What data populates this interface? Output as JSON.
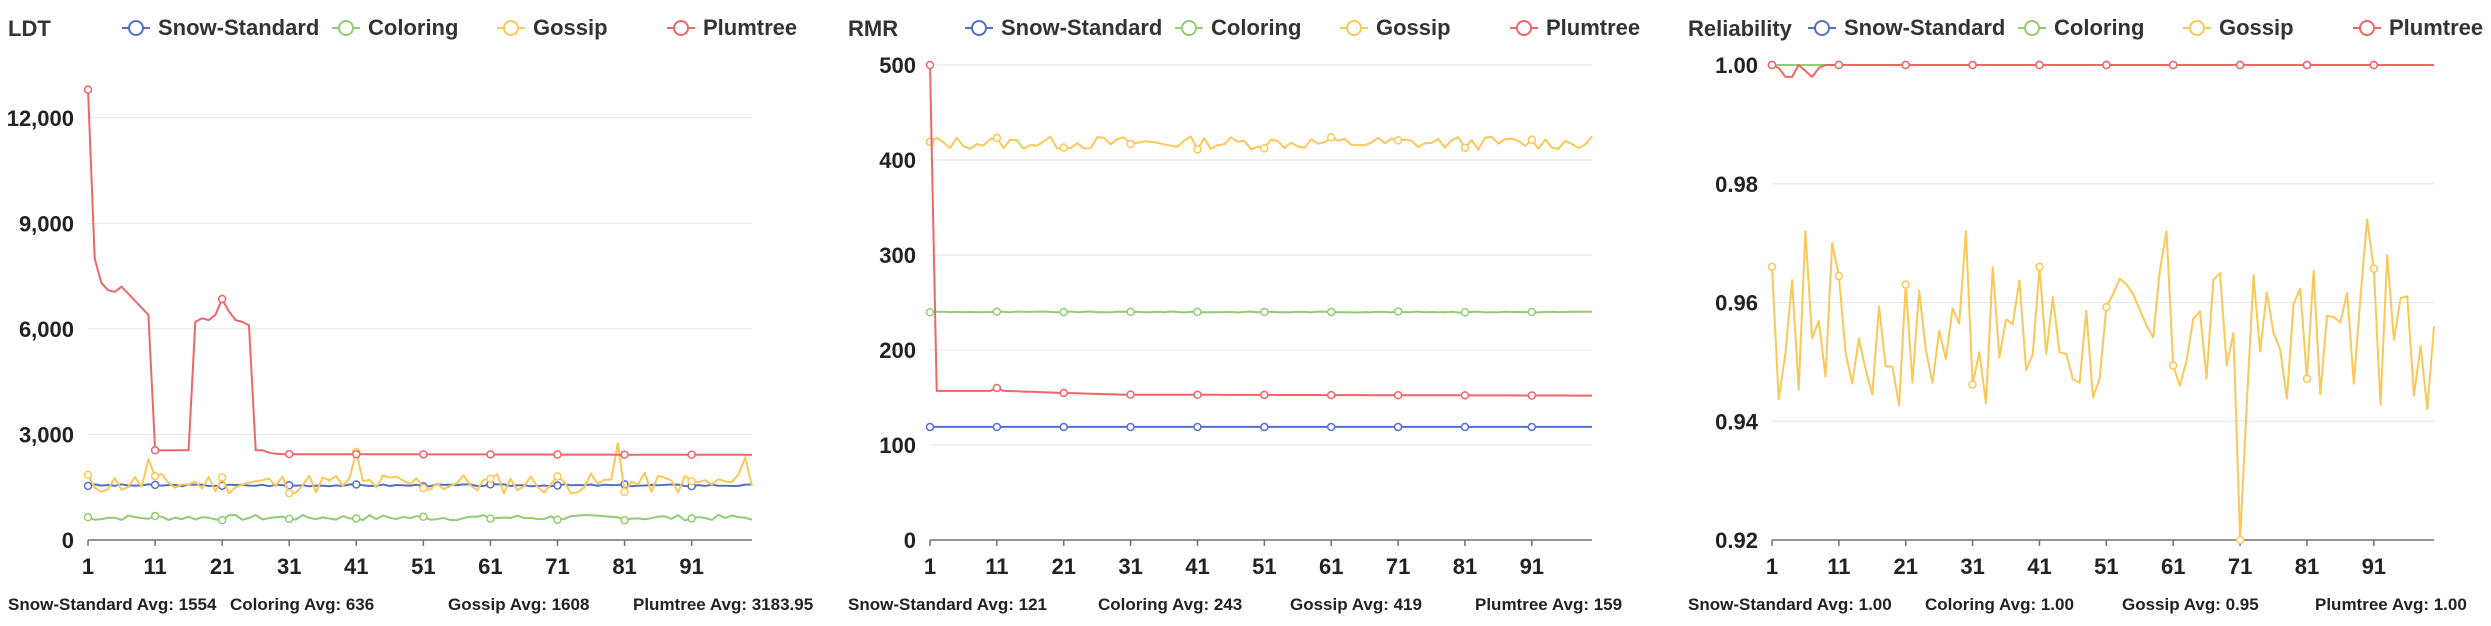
{
  "chart_data": [
    {
      "type": "line",
      "ylabel": "LDT",
      "legend": [
        "Snow-Standard",
        "Coloring",
        "Gossip",
        "Plumtree"
      ],
      "legend_position": "top",
      "x": {
        "start": 1,
        "end": 100
      },
      "xticks": [
        1,
        11,
        21,
        31,
        41,
        51,
        61,
        71,
        81,
        91
      ],
      "ylim": [
        0,
        13500
      ],
      "yticks": [
        0,
        3000,
        6000,
        9000,
        12000
      ],
      "yticklabels": [
        "0",
        "3,000",
        "6,000",
        "9,000",
        "12,000"
      ],
      "grid": true,
      "series": [
        {
          "name": "Snow-Standard",
          "color": "#5470c6",
          "model": "flat",
          "base": 1554,
          "amp": 30,
          "seed": 3
        },
        {
          "name": "Coloring",
          "color": "#91cc75",
          "model": "flat",
          "base": 636,
          "amp": 80,
          "seed": 7
        },
        {
          "name": "Gossip",
          "color": "#fac858",
          "model": "flat",
          "base": 1608,
          "amp": 300,
          "seed": 11,
          "spikes": [
            [
              10,
              2300
            ],
            [
              41,
              2500
            ],
            [
              80,
              2750
            ],
            [
              99,
              2350
            ]
          ]
        },
        {
          "name": "Plumtree",
          "color": "#ee6666",
          "model": "piecewise",
          "points": [
            [
              1,
              12800
            ],
            [
              2,
              8000
            ],
            [
              3,
              7300
            ],
            [
              4,
              7100
            ],
            [
              5,
              7050
            ],
            [
              6,
              7200
            ],
            [
              7,
              7000
            ],
            [
              8,
              6800
            ],
            [
              9,
              6600
            ],
            [
              10,
              6400
            ],
            [
              11,
              2550
            ],
            [
              12,
              2550
            ],
            [
              13,
              2550
            ],
            [
              14,
              2550
            ],
            [
              15,
              2550
            ],
            [
              16,
              2550
            ],
            [
              17,
              6200
            ],
            [
              18,
              6300
            ],
            [
              19,
              6250
            ],
            [
              20,
              6400
            ],
            [
              21,
              6850
            ],
            [
              22,
              6500
            ],
            [
              23,
              6250
            ],
            [
              24,
              6200
            ],
            [
              25,
              6100
            ],
            [
              26,
              2550
            ],
            [
              27,
              2550
            ],
            [
              28,
              2480
            ],
            [
              29,
              2450
            ],
            [
              30,
              2440
            ],
            [
              100,
              2420
            ]
          ]
        }
      ],
      "averages": [
        {
          "label": "Snow-Standard Avg: 1554"
        },
        {
          "label": "Coloring Avg: 636"
        },
        {
          "label": "Gossip Avg: 1608"
        },
        {
          "label": "Plumtree Avg: 3183.95"
        }
      ]
    },
    {
      "type": "line",
      "ylabel": "RMR",
      "legend": [
        "Snow-Standard",
        "Coloring",
        "Gossip",
        "Plumtree"
      ],
      "legend_position": "top",
      "x": {
        "start": 1,
        "end": 100
      },
      "xticks": [
        1,
        11,
        21,
        31,
        41,
        51,
        61,
        71,
        81,
        91
      ],
      "ylim": [
        0,
        500
      ],
      "yticks": [
        0,
        100,
        200,
        300,
        400,
        500
      ],
      "yticklabels": [
        "0",
        "100",
        "200",
        "300",
        "400",
        "500"
      ],
      "grid": true,
      "series": [
        {
          "name": "Snow-Standard",
          "color": "#5470c6",
          "model": "flat",
          "base": 119,
          "amp": 0,
          "seed": 5
        },
        {
          "name": "Coloring",
          "color": "#91cc75",
          "model": "flat",
          "base": 240,
          "amp": 0.5,
          "seed": 9
        },
        {
          "name": "Gossip",
          "color": "#fac858",
          "model": "flat",
          "base": 418,
          "amp": 7,
          "seed": 13
        },
        {
          "name": "Plumtree",
          "color": "#ee6666",
          "model": "piecewise",
          "points": [
            [
              1,
              500
            ],
            [
              2,
              157
            ],
            [
              3,
              157
            ],
            [
              10,
              157
            ],
            [
              11,
              160
            ],
            [
              12,
              157
            ],
            [
              20,
              155
            ],
            [
              30,
              153
            ],
            [
              100,
              152
            ]
          ]
        }
      ],
      "averages": [
        {
          "label": "Snow-Standard Avg: 121"
        },
        {
          "label": "Coloring Avg: 243"
        },
        {
          "label": "Gossip Avg: 419"
        },
        {
          "label": "Plumtree Avg: 159"
        }
      ]
    },
    {
      "type": "line",
      "ylabel": "Reliability",
      "legend": [
        "Snow-Standard",
        "Coloring",
        "Gossip",
        "Plumtree"
      ],
      "legend_position": "top",
      "x": {
        "start": 1,
        "end": 100
      },
      "xticks": [
        1,
        11,
        21,
        31,
        41,
        51,
        61,
        71,
        81,
        91
      ],
      "ylim": [
        0.92,
        1.0
      ],
      "yticks": [
        0.92,
        0.94,
        0.96,
        0.98,
        1.0
      ],
      "yticklabels": [
        "0.92",
        "0.94",
        "0.96",
        "0.98",
        "1.00"
      ],
      "grid": true,
      "series": [
        {
          "name": "Snow-Standard",
          "color": "#5470c6",
          "model": "flat",
          "base": 1.0,
          "amp": 0,
          "seed": 1
        },
        {
          "name": "Coloring",
          "color": "#91cc75",
          "model": "flat",
          "base": 1.0,
          "amp": 0,
          "seed": 2
        },
        {
          "name": "Gossip",
          "color": "#fac858",
          "model": "flat",
          "base": 0.954,
          "amp": 0.012,
          "seed": 17,
          "spikes": [
            [
              1,
              0.966
            ],
            [
              6,
              0.972
            ],
            [
              10,
              0.97
            ],
            [
              30,
              0.972
            ],
            [
              41,
              0.966
            ],
            [
              60,
              0.972
            ],
            [
              71,
              0.92
            ],
            [
              90,
              0.974
            ],
            [
              93,
              0.968
            ],
            [
              100,
              0.956
            ]
          ]
        },
        {
          "name": "Plumtree",
          "color": "#ee6666",
          "model": "piecewise",
          "points": [
            [
              1,
              1.0
            ],
            [
              2,
              0.9995
            ],
            [
              3,
              0.998
            ],
            [
              4,
              0.998
            ],
            [
              5,
              1.0
            ],
            [
              6,
              0.999
            ],
            [
              7,
              0.998
            ],
            [
              8,
              0.9995
            ],
            [
              9,
              1.0
            ],
            [
              100,
              1.0
            ]
          ]
        }
      ],
      "averages": [
        {
          "label": "Snow-Standard Avg: 1.00"
        },
        {
          "label": "Coloring Avg: 1.00"
        },
        {
          "label": "Gossip Avg: 0.95"
        },
        {
          "label": "Plumtree Avg: 1.00"
        }
      ]
    }
  ]
}
